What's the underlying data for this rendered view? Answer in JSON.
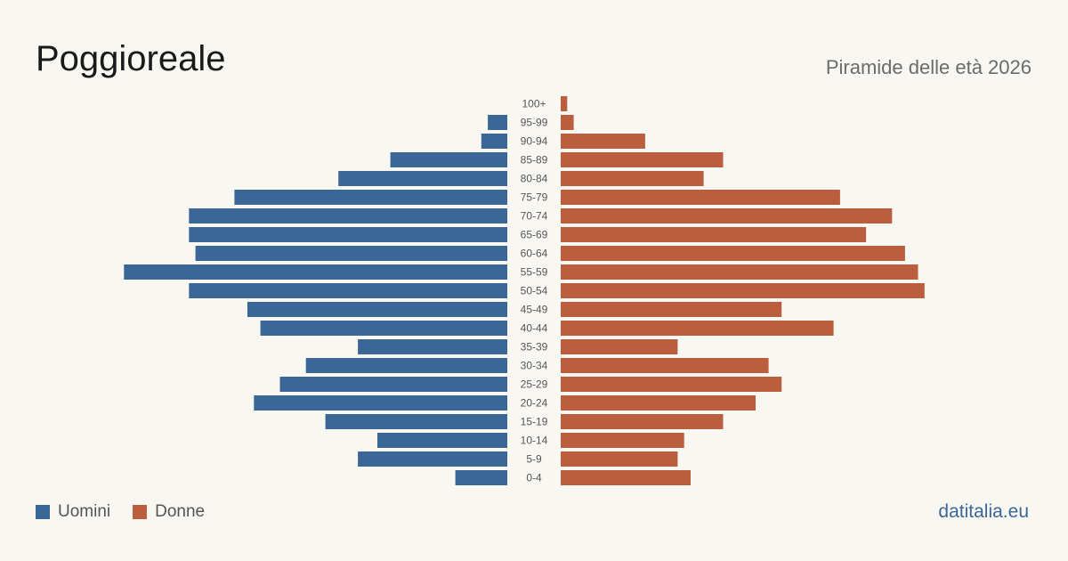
{
  "header": {
    "title": "Poggioreale",
    "subtitle": "Piramide delle età 2026"
  },
  "legend": {
    "men_label": "Uomini",
    "women_label": "Donne"
  },
  "brand": "datitalia.eu",
  "colors": {
    "men": "#3a6795",
    "women": "#bb5e3e",
    "background": "#f9f7f2"
  },
  "chart_data": {
    "type": "bar",
    "orientation": "horizontal-pyramid",
    "categories": [
      "100+",
      "95-99",
      "90-94",
      "85-89",
      "80-84",
      "75-79",
      "70-74",
      "65-69",
      "60-64",
      "55-59",
      "50-54",
      "45-49",
      "40-44",
      "35-39",
      "30-34",
      "25-29",
      "20-24",
      "15-19",
      "10-14",
      "5-9",
      "0-4"
    ],
    "series": [
      {
        "name": "Uomini",
        "values": [
          0,
          3,
          4,
          18,
          26,
          42,
          49,
          49,
          48,
          59,
          49,
          40,
          38,
          23,
          31,
          35,
          39,
          28,
          20,
          23,
          8
        ]
      },
      {
        "name": "Donne",
        "values": [
          1,
          2,
          13,
          25,
          22,
          43,
          51,
          47,
          53,
          55,
          56,
          34,
          42,
          18,
          32,
          34,
          30,
          25,
          19,
          18,
          20
        ]
      }
    ],
    "legend_position": "bottom-left",
    "grid": false
  }
}
